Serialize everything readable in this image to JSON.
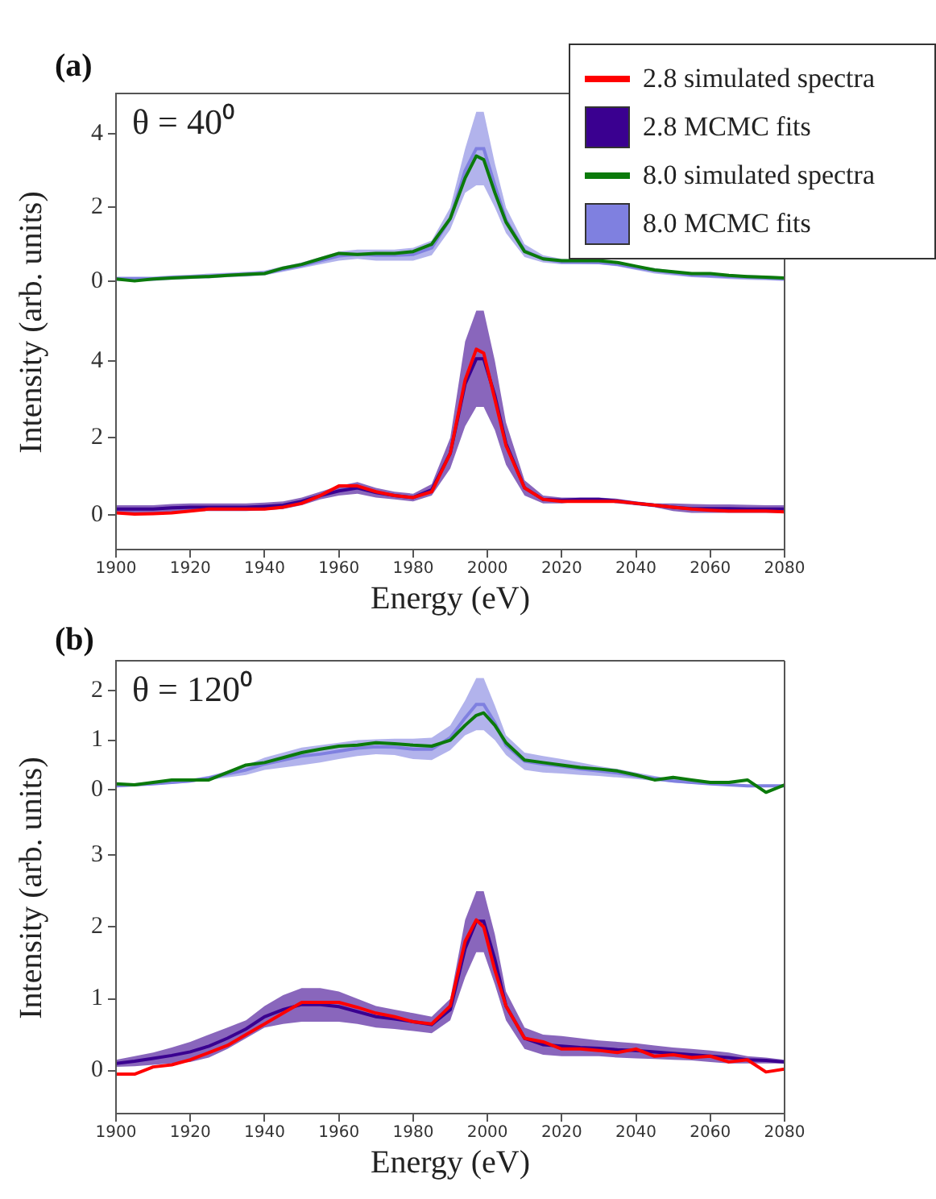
{
  "chart_data": [
    {
      "type": "line",
      "title": "(a)",
      "ylabel": "Intensity (arb. units)",
      "annotations": [
        "θ = 40⁰"
      ],
      "legend": "right",
      "grid": false,
      "tick_labels": "y",
      "x": [
        1900,
        1905,
        1910,
        1915,
        1920,
        1925,
        1930,
        1935,
        1940,
        1945,
        1950,
        1955,
        1960,
        1965,
        1970,
        1975,
        1980,
        1985,
        1990,
        1994,
        1997,
        1999,
        2002,
        2005,
        2010,
        2015,
        2020,
        2025,
        2030,
        2035,
        2040,
        2045,
        2050,
        2055,
        2060,
        2065,
        2070,
        2075,
        2080
      ],
      "xlim": [
        1900,
        2080
      ],
      "ylim": [
        -0.6,
        5.1
      ],
      "yticks": [
        0,
        2,
        4
      ],
      "series": [
        {
          "name": "8.0 simulated spectra",
          "color": "#0b7a0b",
          "values": [
            0.05,
            0,
            0.05,
            0.08,
            0.1,
            0.12,
            0.15,
            0.18,
            0.2,
            0.35,
            0.45,
            0.6,
            0.75,
            0.72,
            0.75,
            0.75,
            0.8,
            1.0,
            1.7,
            2.8,
            3.4,
            3.3,
            2.4,
            1.6,
            0.8,
            0.6,
            0.55,
            0.55,
            0.55,
            0.5,
            0.4,
            0.3,
            0.25,
            0.2,
            0.2,
            0.15,
            0.12,
            0.1,
            0.08
          ]
        },
        {
          "name": "8.0 MCMC fits",
          "color": "#7f80e0",
          "values": [
            0.06,
            0.06,
            0.06,
            0.09,
            0.11,
            0.13,
            0.16,
            0.18,
            0.21,
            0.32,
            0.42,
            0.55,
            0.68,
            0.72,
            0.7,
            0.7,
            0.72,
            0.9,
            1.7,
            3.0,
            3.6,
            3.6,
            2.6,
            1.65,
            0.82,
            0.6,
            0.52,
            0.51,
            0.5,
            0.45,
            0.36,
            0.28,
            0.22,
            0.16,
            0.14,
            0.12,
            0.1,
            0.08,
            0.06
          ],
          "lower": [
            0,
            0,
            0,
            0.03,
            0.05,
            0.07,
            0.1,
            0.12,
            0.15,
            0.25,
            0.35,
            0.45,
            0.55,
            0.6,
            0.55,
            0.55,
            0.55,
            0.7,
            1.4,
            2.4,
            2.6,
            2.6,
            2.0,
            1.3,
            0.65,
            0.5,
            0.45,
            0.45,
            0.45,
            0.4,
            0.3,
            0.2,
            0.15,
            0.1,
            0.08,
            0.05,
            0.03,
            0.02,
            0
          ],
          "upper": [
            0.12,
            0.12,
            0.12,
            0.15,
            0.17,
            0.2,
            0.22,
            0.25,
            0.28,
            0.4,
            0.5,
            0.65,
            0.8,
            0.85,
            0.85,
            0.85,
            0.9,
            1.1,
            2.0,
            3.6,
            4.6,
            4.6,
            3.2,
            2.0,
            1.0,
            0.7,
            0.6,
            0.58,
            0.56,
            0.5,
            0.42,
            0.35,
            0.28,
            0.22,
            0.2,
            0.18,
            0.16,
            0.14,
            0.12
          ]
        }
      ]
    },
    {
      "type": "line",
      "xlabel": "Energy (eV)",
      "grid": false,
      "legend": "top right",
      "x": [
        1900,
        1905,
        1910,
        1915,
        1920,
        1925,
        1930,
        1935,
        1940,
        1945,
        1950,
        1955,
        1960,
        1965,
        1970,
        1975,
        1980,
        1985,
        1990,
        1994,
        1997,
        1999,
        2002,
        2005,
        2010,
        2015,
        2020,
        2025,
        2030,
        2035,
        2040,
        2045,
        2050,
        2055,
        2060,
        2065,
        2070,
        2075,
        2080
      ],
      "xlim": [
        1900,
        2080
      ],
      "xticks": [
        1900,
        1920,
        1940,
        1960,
        1980,
        2000,
        2020,
        2040,
        2060,
        2080
      ],
      "ylim": [
        -0.9,
        5.5
      ],
      "yticks": [
        0,
        2,
        4
      ],
      "series": [
        {
          "name": "2.8 simulated spectra",
          "color": "#ff0000",
          "values": [
            0.05,
            0.02,
            0.03,
            0.05,
            0.1,
            0.15,
            0.15,
            0.15,
            0.15,
            0.2,
            0.3,
            0.5,
            0.75,
            0.75,
            0.6,
            0.5,
            0.45,
            0.6,
            1.6,
            3.5,
            4.3,
            4.2,
            3.0,
            1.8,
            0.7,
            0.4,
            0.35,
            0.35,
            0.35,
            0.35,
            0.3,
            0.25,
            0.2,
            0.15,
            0.12,
            0.1,
            0.1,
            0.1,
            0.08
          ]
        },
        {
          "name": "2.8 MCMC fits",
          "color": "#3a0090",
          "values": [
            0.15,
            0.15,
            0.15,
            0.18,
            0.2,
            0.2,
            0.2,
            0.2,
            0.22,
            0.25,
            0.35,
            0.5,
            0.62,
            0.7,
            0.58,
            0.5,
            0.45,
            0.65,
            1.6,
            3.4,
            4.05,
            4.05,
            3.1,
            1.85,
            0.7,
            0.4,
            0.38,
            0.4,
            0.4,
            0.36,
            0.3,
            0.25,
            0.2,
            0.16,
            0.16,
            0.16,
            0.15,
            0.15,
            0.15
          ],
          "lower": [
            0.05,
            0.05,
            0.05,
            0.08,
            0.1,
            0.1,
            0.1,
            0.1,
            0.12,
            0.15,
            0.25,
            0.4,
            0.5,
            0.55,
            0.45,
            0.4,
            0.35,
            0.5,
            1.2,
            2.3,
            2.8,
            2.8,
            2.2,
            1.3,
            0.5,
            0.3,
            0.3,
            0.35,
            0.35,
            0.3,
            0.25,
            0.2,
            0.1,
            0.05,
            0.05,
            0.05,
            0.05,
            0.05,
            0.05
          ],
          "upper": [
            0.25,
            0.25,
            0.25,
            0.28,
            0.3,
            0.3,
            0.3,
            0.3,
            0.32,
            0.35,
            0.45,
            0.6,
            0.75,
            0.85,
            0.7,
            0.6,
            0.55,
            0.8,
            2.0,
            4.5,
            5.3,
            5.3,
            4.0,
            2.4,
            0.9,
            0.5,
            0.45,
            0.45,
            0.45,
            0.42,
            0.35,
            0.3,
            0.3,
            0.28,
            0.27,
            0.27,
            0.26,
            0.25,
            0.25
          ]
        }
      ]
    },
    {
      "type": "line",
      "title": "(b)",
      "ylabel": "Intensity (arb. units)",
      "annotations": [
        "θ = 120⁰"
      ],
      "grid": false,
      "tick_labels": "y",
      "x": [
        1900,
        1905,
        1910,
        1915,
        1920,
        1925,
        1930,
        1935,
        1940,
        1945,
        1950,
        1955,
        1960,
        1965,
        1970,
        1975,
        1980,
        1985,
        1990,
        1994,
        1997,
        1999,
        2002,
        2005,
        2010,
        2015,
        2020,
        2025,
        2030,
        2035,
        2040,
        2045,
        2050,
        2055,
        2060,
        2065,
        2070,
        2075,
        2080
      ],
      "xlim": [
        1900,
        2080
      ],
      "ylim": [
        -0.45,
        2.6
      ],
      "yticks": [
        0,
        1,
        2
      ],
      "series": [
        {
          "color": "#0b7a0b",
          "values": [
            0.12,
            0.1,
            0.15,
            0.2,
            0.2,
            0.2,
            0.35,
            0.5,
            0.55,
            0.65,
            0.75,
            0.82,
            0.88,
            0.9,
            0.95,
            0.93,
            0.9,
            0.88,
            1.0,
            1.3,
            1.5,
            1.55,
            1.3,
            0.95,
            0.6,
            0.55,
            0.5,
            0.45,
            0.42,
            0.38,
            0.3,
            0.2,
            0.25,
            0.2,
            0.15,
            0.15,
            0.2,
            -0.05,
            0.1
          ]
        },
        {
          "color": "#7f80e0",
          "values": [
            0.08,
            0.1,
            0.12,
            0.15,
            0.18,
            0.24,
            0.32,
            0.4,
            0.52,
            0.6,
            0.68,
            0.72,
            0.78,
            0.84,
            0.87,
            0.86,
            0.82,
            0.82,
            1.05,
            1.45,
            1.72,
            1.72,
            1.35,
            0.9,
            0.58,
            0.52,
            0.48,
            0.42,
            0.38,
            0.34,
            0.28,
            0.23,
            0.18,
            0.15,
            0.12,
            0.1,
            0.08,
            0.08,
            0.08
          ],
          "lower": [
            0.05,
            0.08,
            0.1,
            0.12,
            0.15,
            0.2,
            0.25,
            0.3,
            0.4,
            0.45,
            0.5,
            0.55,
            0.62,
            0.68,
            0.72,
            0.7,
            0.62,
            0.6,
            0.8,
            1.1,
            1.2,
            1.2,
            1.0,
            0.7,
            0.4,
            0.35,
            0.33,
            0.3,
            0.28,
            0.25,
            0.22,
            0.18,
            0.15,
            0.12,
            0.1,
            0.08,
            0.07,
            0.06,
            0.05
          ],
          "upper": [
            0.1,
            0.12,
            0.15,
            0.18,
            0.22,
            0.28,
            0.38,
            0.5,
            0.65,
            0.75,
            0.85,
            0.9,
            0.95,
            1.0,
            1.02,
            1.03,
            1.03,
            1.05,
            1.3,
            1.8,
            2.25,
            2.25,
            1.7,
            1.1,
            0.75,
            0.68,
            0.62,
            0.55,
            0.48,
            0.42,
            0.35,
            0.28,
            0.22,
            0.18,
            0.15,
            0.12,
            0.1,
            0.1,
            0.1
          ]
        }
      ]
    },
    {
      "type": "line",
      "xlabel": "Energy (eV)",
      "grid": false,
      "x": [
        1900,
        1905,
        1910,
        1915,
        1920,
        1925,
        1930,
        1935,
        1940,
        1945,
        1950,
        1955,
        1960,
        1965,
        1970,
        1975,
        1980,
        1985,
        1990,
        1994,
        1997,
        1999,
        2002,
        2005,
        2010,
        2015,
        2020,
        2025,
        2030,
        2035,
        2040,
        2045,
        2050,
        2055,
        2060,
        2065,
        2070,
        2075,
        2080
      ],
      "xlim": [
        1900,
        2080
      ],
      "xticks": [
        1900,
        1920,
        1940,
        1960,
        1980,
        2000,
        2020,
        2040,
        2060,
        2080
      ],
      "ylim": [
        -0.6,
        3.6
      ],
      "yticks": [
        0,
        1,
        2,
        3
      ],
      "series": [
        {
          "color": "#ff0000",
          "values": [
            -0.05,
            -0.05,
            0.05,
            0.08,
            0.15,
            0.25,
            0.35,
            0.5,
            0.65,
            0.8,
            0.95,
            0.95,
            0.95,
            0.88,
            0.8,
            0.75,
            0.68,
            0.65,
            0.9,
            1.8,
            2.1,
            2.0,
            1.4,
            0.9,
            0.45,
            0.4,
            0.3,
            0.3,
            0.28,
            0.25,
            0.3,
            0.2,
            0.22,
            0.18,
            0.2,
            0.12,
            0.15,
            -0.02,
            0.02
          ]
        },
        {
          "color": "#3a0090",
          "values": [
            0.1,
            0.13,
            0.17,
            0.21,
            0.26,
            0.34,
            0.45,
            0.58,
            0.75,
            0.85,
            0.92,
            0.92,
            0.89,
            0.82,
            0.75,
            0.72,
            0.68,
            0.64,
            0.85,
            1.7,
            2.08,
            2.08,
            1.55,
            0.9,
            0.45,
            0.36,
            0.34,
            0.32,
            0.31,
            0.29,
            0.28,
            0.26,
            0.24,
            0.22,
            0.2,
            0.18,
            0.15,
            0.14,
            0.12
          ],
          "lower": [
            0.05,
            0.06,
            0.08,
            0.1,
            0.12,
            0.18,
            0.3,
            0.45,
            0.6,
            0.65,
            0.68,
            0.68,
            0.68,
            0.65,
            0.6,
            0.58,
            0.55,
            0.52,
            0.7,
            1.3,
            1.65,
            1.65,
            1.2,
            0.7,
            0.3,
            0.22,
            0.2,
            0.2,
            0.2,
            0.18,
            0.17,
            0.16,
            0.15,
            0.14,
            0.12,
            0.1,
            0.1,
            0.1,
            0.1
          ],
          "upper": [
            0.15,
            0.2,
            0.25,
            0.32,
            0.4,
            0.5,
            0.6,
            0.7,
            0.9,
            1.05,
            1.15,
            1.15,
            1.1,
            1.0,
            0.9,
            0.85,
            0.8,
            0.75,
            1.0,
            2.1,
            2.5,
            2.5,
            1.9,
            1.1,
            0.6,
            0.5,
            0.48,
            0.45,
            0.42,
            0.4,
            0.38,
            0.35,
            0.32,
            0.3,
            0.28,
            0.25,
            0.2,
            0.18,
            0.15
          ]
        }
      ]
    }
  ]
}
